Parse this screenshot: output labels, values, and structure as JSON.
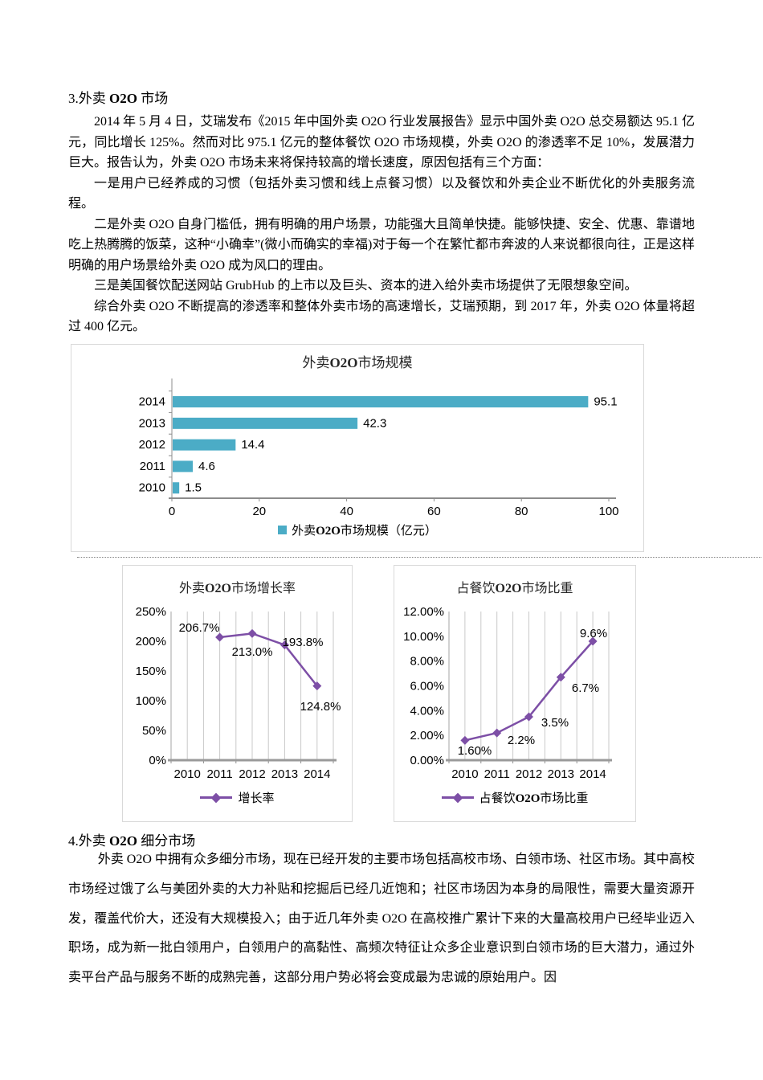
{
  "section3": {
    "heading": {
      "pre": "3.外卖 ",
      "bold": "O2O",
      "post": " 市场"
    },
    "paragraphs": [
      "2014 年 5 月 4 日，艾瑞发布《2015 年中国外卖 O2O 行业发展报告》显示中国外卖 O2O 总交易额达 95.1 亿元，同比增长 125%。然而对比 975.1 亿元的整体餐饮 O2O 市场规模，外卖 O2O 的渗透率不足 10%，发展潜力巨大。报告认为，外卖 O2O 市场未来将保持较高的增长速度，原因包括有三个方面：",
      "一是用户已经养成的习惯（包括外卖习惯和线上点餐习惯）以及餐饮和外卖企业不断优化的外卖服务流程。",
      "二是外卖 O2O 自身门槛低，拥有明确的用户场景，功能强大且简单快捷。能够快捷、安全、优惠、靠谱地吃上热腾腾的饭菜，这种“小确幸”(微小而确实的幸福)对于每一个在繁忙都市奔波的人来说都很向往，正是这样明确的用户场景给外卖 O2O 成为风口的理由。",
      "三是美国餐饮配送网站 GrubHub 的上市以及巨头、资本的进入给外卖市场提供了无限想象空间。",
      "综合外卖 O2O 不断提高的渗透率和整体外卖市场的高速增长，艾瑞预期，到 2017 年，外卖 O2O 体量将超过 400 亿元。"
    ]
  },
  "section4": {
    "heading": {
      "pre": "4.外卖 ",
      "bold": "O2O",
      "post": " 细分市场"
    },
    "paragraphs": [
      "外卖 O2O 中拥有众多细分市场，现在已经开发的主要市场包括高校市场、白领市场、社区市场。其中高校市场经过饿了么与美团外卖的大力补贴和挖掘后已经几近饱和；社区市场因为本身的局限性，需要大量资源开发，覆盖代价大，还没有大规模投入；由于近几年外卖 O2O 在高校推广累计下来的大量高校用户已经毕业迈入职场，成为新一批白领用户，白领用户的高黏性、高频次特征让众多企业意识到白领市场的巨大潜力，通过外卖平台产品与服务不断的成熟完善，这部分用户势必将会变成最为忠诚的原始用户。因"
    ]
  },
  "colors": {
    "bar_teal": "#4BACC6",
    "line_purple": "#7D4FA6",
    "gridline": "#c9c9c9",
    "axis_gray": "#8c8c8c",
    "box_border": "#d9d9d9"
  },
  "chart_data": [
    {
      "id": "market-size",
      "type": "bar",
      "orientation": "horizontal",
      "title_runs": {
        "pre": "外卖",
        "bold": "O2O",
        "post": "市场规模"
      },
      "categories": [
        "2014",
        "2013",
        "2012",
        "2011",
        "2010"
      ],
      "values": [
        95.1,
        42.3,
        14.4,
        4.6,
        1.5
      ],
      "value_labels": [
        "95.1",
        "42.3",
        "14.4",
        "4.6",
        "1.5"
      ],
      "xlim": [
        0,
        100
      ],
      "xticks": [
        "0",
        "20",
        "40",
        "60",
        "80",
        "100"
      ],
      "bar_color": "#4BACC6",
      "legend_runs": {
        "pre": "外卖",
        "bold": "O2O",
        "post": "市场规模（亿元）"
      },
      "legend_position": "bottom",
      "grid": "off"
    },
    {
      "id": "growth-rate",
      "type": "line",
      "title_runs": {
        "pre": "外卖",
        "bold": "O2O",
        "post": "市场增长率"
      },
      "categories": [
        "2010",
        "2011",
        "2012",
        "2013",
        "2014"
      ],
      "values": [
        null,
        206.7,
        213.0,
        193.8,
        124.8
      ],
      "point_labels": [
        "",
        "206.7%",
        "213.0%",
        "193.8%",
        "124.8%"
      ],
      "ylim": [
        0,
        250
      ],
      "yticks": [
        "0%",
        "50%",
        "100%",
        "150%",
        "200%",
        "250%"
      ],
      "line_color": "#7D4FA6",
      "legend_runs": {
        "pre": "增长率",
        "bold": "",
        "post": ""
      },
      "legend_position": "bottom",
      "grid": "vertical"
    },
    {
      "id": "share-of-catering",
      "type": "line",
      "title_runs": {
        "pre": "占餐饮",
        "bold": "O2O",
        "post": "市场比重"
      },
      "categories": [
        "2010",
        "2011",
        "2012",
        "2013",
        "2014"
      ],
      "values": [
        1.6,
        2.2,
        3.5,
        6.7,
        9.6
      ],
      "point_labels": [
        "1.60%",
        "2.2%",
        "3.5%",
        "6.7%",
        "9.6%"
      ],
      "ylim": [
        0,
        12
      ],
      "yticks": [
        "0.00%",
        "2.00%",
        "4.00%",
        "6.00%",
        "8.00%",
        "10.00%",
        "12.00%"
      ],
      "line_color": "#7D4FA6",
      "legend_runs": {
        "pre": "占餐饮",
        "bold": "O2O",
        "post": "市场比重"
      },
      "legend_position": "bottom",
      "grid": "vertical"
    }
  ]
}
